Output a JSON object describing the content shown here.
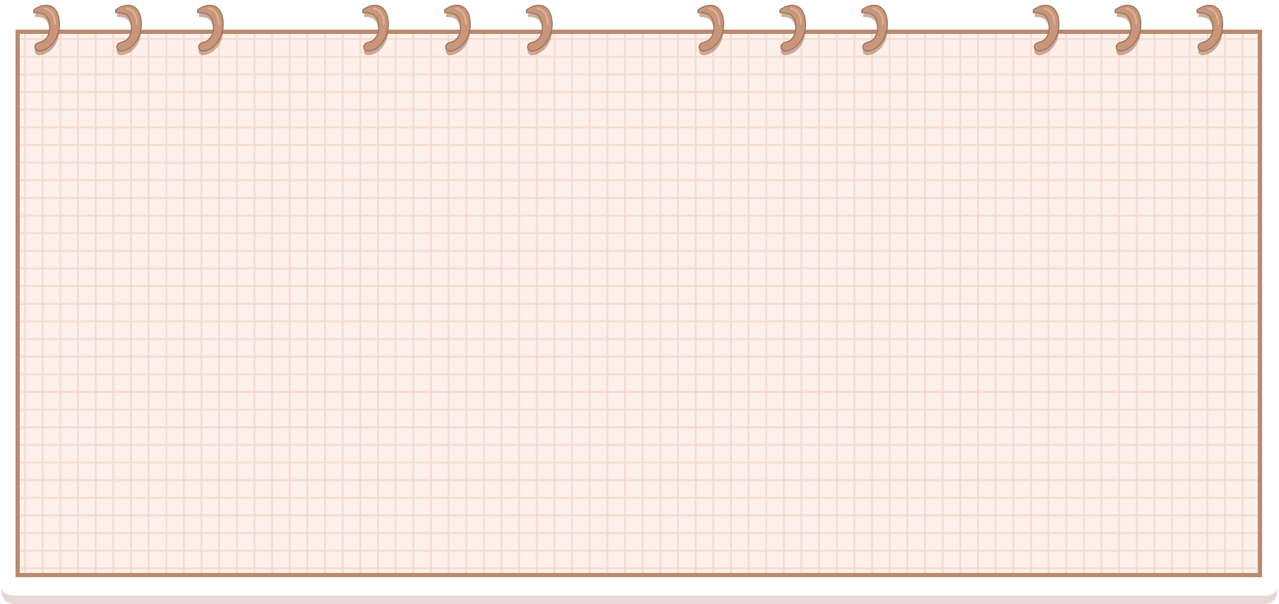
{
  "colors": {
    "paper": "#fdf0ea",
    "grid": "#f5d7cd",
    "border": "#b98a6f",
    "ring": "#c8967a",
    "ring_shadow": "#9e6f55",
    "shadow": "#e8d8d8"
  },
  "icons": {
    "ring": "spiral-binding-ring-icon"
  },
  "rings": {
    "count": 12
  }
}
